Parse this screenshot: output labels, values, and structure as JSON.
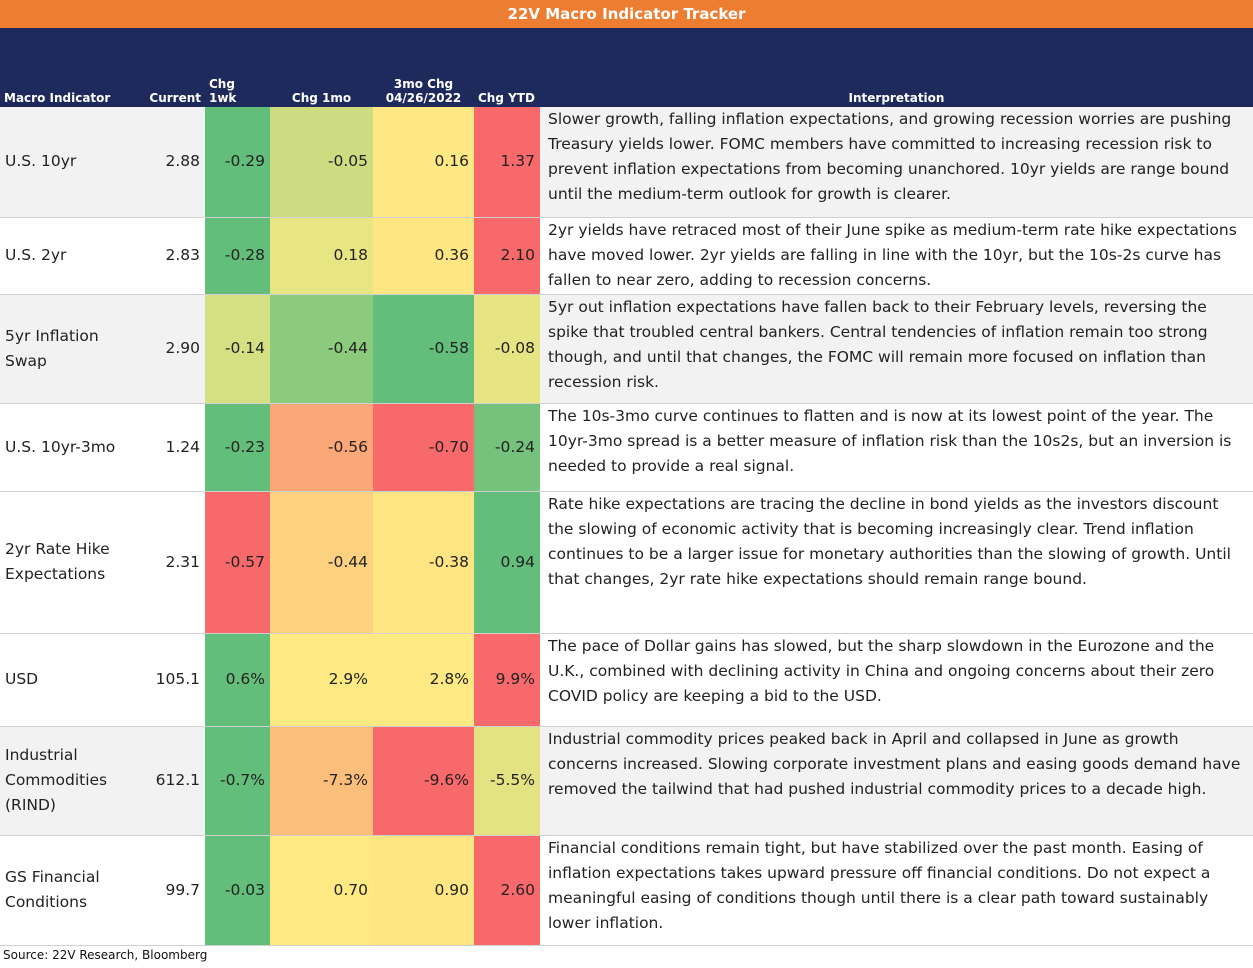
{
  "title": "22V Macro Indicator Tracker",
  "table": {
    "headers": [
      "Macro Indicator",
      "Current",
      "Chg 1wk",
      "Chg 1mo",
      "3mo Chg\n04/26/2022",
      "Chg YTD",
      "Interpretation"
    ],
    "rows": [
      [
        "U.S. 10yr",
        "2.88",
        "-0.29",
        "-0.05",
        "0.16",
        "1.37",
        "Slower growth, falling inflation expectations, and growing recession worries are pushing Treasury yields lower. FOMC members have committed to increasing recession risk to prevent inflation expectations from becoming unanchored. 10yr yields are range bound until the medium-term outlook for growth is clearer."
      ],
      [
        "U.S. 2yr",
        "2.83",
        "-0.28",
        "0.18",
        "0.36",
        "2.10",
        "2yr yields have retraced most of their June spike as medium-term rate hike expectations have moved lower. 2yr yields are falling in line with the 10yr, but the 10s-2s curve has fallen to near zero, adding to recession concerns."
      ],
      [
        "5yr Inflation Swap",
        "2.90",
        "-0.14",
        "-0.44",
        "-0.58",
        "-0.08",
        "5yr out inflation expectations have fallen back to their February levels, reversing the spike that troubled central bankers. Central tendencies of inflation remain too strong though, and until that changes, the FOMC will remain more focused on inflation than recession risk."
      ],
      [
        "U.S. 10yr-3mo",
        "1.24",
        "-0.23",
        "-0.56",
        "-0.70",
        "-0.24",
        "The 10s-3mo curve continues to flatten and is now at its lowest point of the year.  The 10yr-3mo spread is a better measure of inflation risk than the 10s2s, but an inversion is needed to provide a real signal."
      ],
      [
        "2yr Rate Hike Expectations",
        "2.31",
        "-0.57",
        "-0.44",
        "-0.38",
        "0.94",
        "Rate hike expectations are tracing the decline in bond yields as the investors discount the slowing of economic activity that is becoming increasingly clear. Trend inflation continues to be a larger issue for monetary authorities than the slowing of growth. Until that changes, 2yr rate hike expectations should remain range bound."
      ],
      [
        "USD",
        "105.1",
        "0.6%",
        "2.9%",
        "2.8%",
        "9.9%",
        "The pace of Dollar gains has slowed, but the sharp slowdown in the Eurozone and the U.K., combined with declining activity in China and ongoing concerns about their zero COVID policy are keeping a bid to the USD."
      ],
      [
        "Industrial Commodities (RIND)",
        "612.1",
        "-0.7%",
        "-7.3%",
        "-9.6%",
        "-5.5%",
        "Industrial commodity prices peaked back in April and collapsed in June as growth concerns increased. Slowing corporate investment plans and easing goods demand have removed the tailwind that had pushed industrial commodity prices to a decade high."
      ],
      [
        "GS Financial Conditions",
        "99.7",
        "-0.03",
        "0.70",
        "0.90",
        "2.60",
        "Financial conditions remain tight, but have stabilized over the past month. Easing of inflation expectations takes upward pressure off financial conditions. Do not expect a meaningful easing of conditions though until there is a clear path toward sustainably lower inflation."
      ]
    ],
    "colors": [
      [
        "#63be7b",
        "#cddc81",
        "#fee883",
        "#f8696b"
      ],
      [
        "#63be7b",
        "#e8e583",
        "#fee783",
        "#f8696b"
      ],
      [
        "#d5e082",
        "#8ccb7e",
        "#63be7b",
        "#e6e483"
      ],
      [
        "#63be7b",
        "#fba777",
        "#f8696b",
        "#75c27c"
      ],
      [
        "#f8696b",
        "#fdd17f",
        "#fee582",
        "#63be7b"
      ],
      [
        "#63be7b",
        "#fee983",
        "#fee983",
        "#f8696b"
      ],
      [
        "#63be7b",
        "#fcbe7b",
        "#f8696b",
        "#e4e383"
      ],
      [
        "#63be7b",
        "#fee983",
        "#fee783",
        "#f8696b"
      ]
    ]
  },
  "source": "Source: 22V Research, Bloomberg"
}
